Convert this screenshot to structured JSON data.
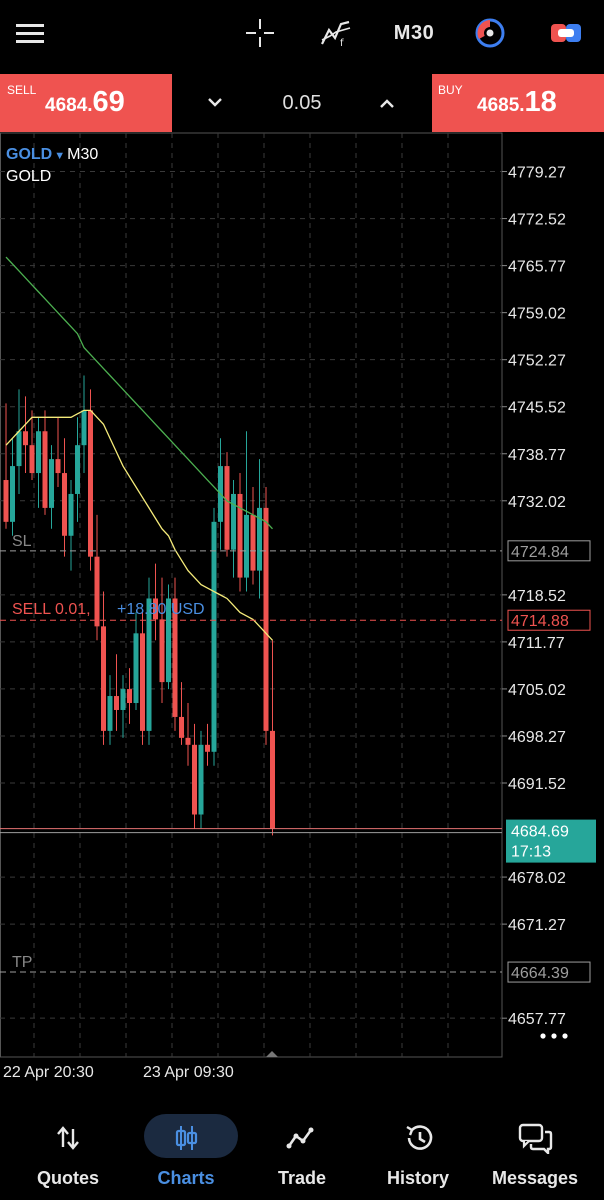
{
  "toolbar": {
    "menu_icon": "hamburger-menu-icon",
    "crosshair_icon": "crosshair-icon",
    "indicator_icon": "indicators-icon",
    "timeframe": "M30",
    "objects_icon": "objects-icon",
    "trade_icon": "one-click-trading-icon"
  },
  "trade_panel": {
    "sell_label": "SELL",
    "sell_price_small": "4684.",
    "sell_price_big": "69",
    "volume": "0.05",
    "buy_label": "BUY",
    "buy_price_small": "4685.",
    "buy_price_big": "18",
    "sell_color": "#ef5350",
    "buy_color": "#ef5350"
  },
  "chart_header": {
    "symbol": "GOLD",
    "timeframe": "M30",
    "description": "GOLD"
  },
  "chart_data": {
    "type": "candlestick",
    "y_ticks": [
      "4779.27",
      "4772.52",
      "4765.77",
      "4759.02",
      "4752.27",
      "4745.52",
      "4738.77",
      "4732.02",
      "4718.52",
      "4711.77",
      "4705.02",
      "4698.27",
      "4691.52",
      "4678.02",
      "4671.27",
      "4657.77"
    ],
    "ylim": [
      4652.2,
      4784.8
    ],
    "x_labels": [
      "22 Apr 20:30",
      "23 Apr 09:30"
    ],
    "candles": [
      {
        "o": 4735,
        "h": 4746,
        "l": 4728,
        "c": 4729
      },
      {
        "o": 4729,
        "h": 4741,
        "l": 4727,
        "c": 4737
      },
      {
        "o": 4737,
        "h": 4748,
        "l": 4733,
        "c": 4742
      },
      {
        "o": 4742,
        "h": 4747,
        "l": 4736,
        "c": 4740
      },
      {
        "o": 4740,
        "h": 4745,
        "l": 4735,
        "c": 4736
      },
      {
        "o": 4736,
        "h": 4744,
        "l": 4731,
        "c": 4742
      },
      {
        "o": 4742,
        "h": 4745,
        "l": 4730,
        "c": 4731
      },
      {
        "o": 4731,
        "h": 4740,
        "l": 4728,
        "c": 4738
      },
      {
        "o": 4738,
        "h": 4744,
        "l": 4734,
        "c": 4736
      },
      {
        "o": 4736,
        "h": 4741,
        "l": 4724,
        "c": 4727
      },
      {
        "o": 4727,
        "h": 4735,
        "l": 4722,
        "c": 4733
      },
      {
        "o": 4733,
        "h": 4744,
        "l": 4729,
        "c": 4740
      },
      {
        "o": 4740,
        "h": 4750,
        "l": 4736,
        "c": 4745
      },
      {
        "o": 4745,
        "h": 4748,
        "l": 4722,
        "c": 4724
      },
      {
        "o": 4724,
        "h": 4730,
        "l": 4712,
        "c": 4714
      },
      {
        "o": 4714,
        "h": 4719,
        "l": 4697,
        "c": 4699
      },
      {
        "o": 4699,
        "h": 4707,
        "l": 4697,
        "c": 4704
      },
      {
        "o": 4704,
        "h": 4710,
        "l": 4699,
        "c": 4702
      },
      {
        "o": 4702,
        "h": 4707,
        "l": 4698,
        "c": 4705
      },
      {
        "o": 4705,
        "h": 4708,
        "l": 4700,
        "c": 4703
      },
      {
        "o": 4703,
        "h": 4716,
        "l": 4702,
        "c": 4713
      },
      {
        "o": 4713,
        "h": 4716,
        "l": 4697,
        "c": 4699
      },
      {
        "o": 4699,
        "h": 4721,
        "l": 4697,
        "c": 4718
      },
      {
        "o": 4718,
        "h": 4723,
        "l": 4712,
        "c": 4715
      },
      {
        "o": 4715,
        "h": 4721,
        "l": 4703,
        "c": 4706
      },
      {
        "o": 4706,
        "h": 4720,
        "l": 4705,
        "c": 4718
      },
      {
        "o": 4718,
        "h": 4721,
        "l": 4699,
        "c": 4701
      },
      {
        "o": 4701,
        "h": 4706,
        "l": 4697,
        "c": 4698
      },
      {
        "o": 4698,
        "h": 4703,
        "l": 4694,
        "c": 4697
      },
      {
        "o": 4697,
        "h": 4700,
        "l": 4685,
        "c": 4687
      },
      {
        "o": 4687,
        "h": 4699,
        "l": 4685,
        "c": 4697
      },
      {
        "o": 4697,
        "h": 4700,
        "l": 4694,
        "c": 4696
      },
      {
        "o": 4696,
        "h": 4731,
        "l": 4694,
        "c": 4729
      },
      {
        "o": 4729,
        "h": 4741,
        "l": 4725,
        "c": 4737
      },
      {
        "o": 4737,
        "h": 4739,
        "l": 4724,
        "c": 4725
      },
      {
        "o": 4725,
        "h": 4735,
        "l": 4721,
        "c": 4733
      },
      {
        "o": 4733,
        "h": 4736,
        "l": 4719,
        "c": 4721
      },
      {
        "o": 4721,
        "h": 4742,
        "l": 4719,
        "c": 4730
      },
      {
        "o": 4730,
        "h": 4734,
        "l": 4720,
        "c": 4722
      },
      {
        "o": 4722,
        "h": 4738,
        "l": 4718,
        "c": 4731
      },
      {
        "o": 4731,
        "h": 4734,
        "l": 4697,
        "c": 4699
      },
      {
        "o": 4699,
        "h": 4712,
        "l": 4684,
        "c": 4685
      }
    ],
    "ma_slow": {
      "color": "#4caf50",
      "values": [
        4767,
        4766,
        4765,
        4764,
        4763,
        4762,
        4761,
        4760,
        4759,
        4758,
        4757,
        4756,
        4754,
        4753,
        4752,
        4751,
        4750,
        4749,
        4748,
        4747,
        4746,
        4745,
        4744,
        4743,
        4742,
        4741,
        4740,
        4739,
        4738,
        4737,
        4736,
        4735,
        4734,
        4733,
        4732,
        4731.5,
        4731,
        4730.5,
        4730,
        4729.5,
        4729,
        4728
      ]
    },
    "ma_fast": {
      "color": "#f5eb7a",
      "values": [
        4740,
        4741,
        4742,
        4743,
        4744,
        4744,
        4744,
        4744,
        4744,
        4744,
        4744,
        4744.5,
        4745,
        4745,
        4744,
        4743,
        4741,
        4739,
        4737,
        4735.5,
        4734,
        4732.5,
        4731,
        4729.5,
        4728,
        4727,
        4725,
        4723.5,
        4722,
        4721,
        4720,
        4719.5,
        4719,
        4718.5,
        4718,
        4717,
        4716,
        4715.5,
        4715,
        4714,
        4713,
        4712
      ]
    },
    "levels": [
      {
        "name": "SL",
        "price": "4724.84",
        "value": 4724.84,
        "color": "#9e9e9e"
      },
      {
        "name": "order",
        "price": "4714.88",
        "value": 4714.88,
        "color": "#ef5350"
      },
      {
        "name": "TP",
        "price": "4664.39",
        "value": 4664.39,
        "color": "#9e9e9e"
      }
    ],
    "current_price": {
      "price": "4684.69",
      "value": 4684.69,
      "timer": "17:13",
      "color": "#26a69a"
    },
    "order_label": "SELL 0.01,",
    "order_profit": "+18.80 USD",
    "candle_colors": {
      "up": "#26a69a",
      "down": "#ef5350"
    },
    "grid": true
  },
  "bottom_nav": {
    "items": [
      {
        "label": "Quotes",
        "icon": "quotes-arrows-icon",
        "active": false
      },
      {
        "label": "Charts",
        "icon": "candlestick-chart-icon",
        "active": true
      },
      {
        "label": "Trade",
        "icon": "trade-line-icon",
        "active": false
      },
      {
        "label": "History",
        "icon": "history-clock-icon",
        "active": false
      },
      {
        "label": "Messages",
        "icon": "messages-chat-icon",
        "active": false
      }
    ],
    "active_color": "#4a8fe2"
  }
}
